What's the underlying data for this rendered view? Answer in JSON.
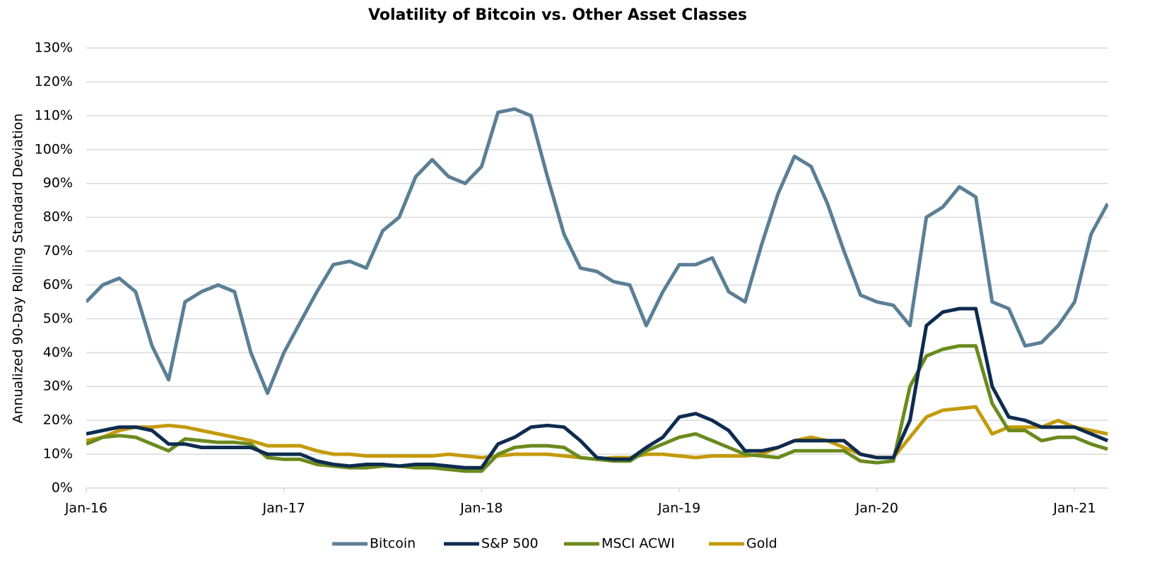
{
  "chart_data": {
    "type": "line",
    "title": "Volatility of Bitcoin vs. Other Asset Classes",
    "y_label": "Annualized 90-Day Rolling Standard Deviation",
    "x": [
      2016,
      2016.083,
      2016.167,
      2016.25,
      2016.333,
      2016.417,
      2016.5,
      2016.583,
      2016.667,
      2016.75,
      2016.833,
      2016.917,
      2017,
      2017.083,
      2017.167,
      2017.25,
      2017.333,
      2017.417,
      2017.5,
      2017.583,
      2017.667,
      2017.75,
      2017.833,
      2017.917,
      2018,
      2018.083,
      2018.167,
      2018.25,
      2018.333,
      2018.417,
      2018.5,
      2018.583,
      2018.667,
      2018.75,
      2018.833,
      2018.917,
      2019,
      2019.083,
      2019.167,
      2019.25,
      2019.333,
      2019.417,
      2019.5,
      2019.583,
      2019.667,
      2019.75,
      2019.833,
      2019.917,
      2020,
      2020.083,
      2020.167,
      2020.25,
      2020.333,
      2020.417,
      2020.5,
      2020.583,
      2020.667,
      2020.75,
      2020.833,
      2020.917,
      2021,
      2021.083,
      2021.167
    ],
    "series": [
      {
        "name": "Bitcoin",
        "color": "#5b7f95",
        "values": [
          55,
          60,
          62,
          58,
          42,
          32,
          55,
          58,
          60,
          58,
          40,
          28,
          40,
          49,
          58,
          66,
          67,
          65,
          76,
          80,
          92,
          97,
          92,
          90,
          95,
          111,
          112,
          110,
          92,
          75,
          65,
          64,
          61,
          60,
          48,
          58,
          66,
          66,
          68,
          58,
          55,
          72,
          87,
          98,
          95,
          84,
          70,
          57,
          55,
          54,
          48,
          80,
          83,
          89,
          86,
          55,
          53,
          42,
          43,
          48,
          55,
          75,
          84
        ]
      },
      {
        "name": "S&P 500",
        "color": "#0d2c4f",
        "values": [
          16,
          17,
          18,
          18,
          17,
          13,
          13,
          12,
          12,
          12,
          12,
          10,
          10,
          10,
          8,
          7,
          6.5,
          7,
          7,
          6.5,
          7,
          7,
          6.5,
          6,
          6,
          13,
          15,
          18,
          18.5,
          18,
          14,
          9,
          8.5,
          8.5,
          12,
          15,
          21,
          22,
          20,
          17,
          11,
          11,
          12,
          14,
          14,
          14,
          14,
          10,
          9,
          9,
          20,
          48,
          52,
          53,
          53,
          30,
          21,
          20,
          18,
          18,
          18,
          16,
          14
        ]
      },
      {
        "name": "MSCI ACWI",
        "color": "#6b8a1e",
        "values": [
          13,
          15,
          15.5,
          15,
          13,
          11,
          14.5,
          14,
          13.5,
          13.5,
          13,
          9,
          8.5,
          8.5,
          7,
          6.5,
          6,
          6,
          6.5,
          6.5,
          6,
          6,
          5.5,
          5,
          5,
          10,
          12,
          12.5,
          12.5,
          12,
          9,
          8.5,
          8,
          8,
          11,
          13,
          15,
          16,
          14,
          12,
          10,
          9.5,
          9,
          11,
          11,
          11,
          11,
          8,
          7.5,
          8,
          30,
          39,
          41,
          42,
          42,
          25,
          17,
          17,
          14,
          15,
          15,
          13,
          11.5
        ]
      },
      {
        "name": "Gold",
        "color": "#c49a0a",
        "values": [
          14,
          15,
          17,
          18,
          18,
          18.5,
          18,
          17,
          16,
          15,
          14,
          12.5,
          12.5,
          12.5,
          11,
          10,
          10,
          9.5,
          9.5,
          9.5,
          9.5,
          9.5,
          10,
          9.5,
          9,
          9.5,
          10,
          10,
          10,
          9.5,
          9,
          8.5,
          9,
          9,
          10,
          10,
          9.5,
          9,
          9.5,
          9.5,
          9.5,
          10,
          12,
          14,
          15,
          14,
          12,
          10,
          9,
          9,
          15,
          21,
          23,
          23.5,
          24,
          16,
          18,
          18,
          18,
          20,
          18,
          17,
          16
        ]
      }
    ],
    "xlim": [
      2016,
      2021.17
    ],
    "xticks": [
      {
        "value": 2016,
        "label": "Jan-16"
      },
      {
        "value": 2017,
        "label": "Jan-17"
      },
      {
        "value": 2018,
        "label": "Jan-18"
      },
      {
        "value": 2019,
        "label": "Jan-19"
      },
      {
        "value": 2020,
        "label": "Jan-20"
      },
      {
        "value": 2021,
        "label": "Jan-21"
      }
    ],
    "ylim": [
      0,
      130
    ],
    "yticks": [
      {
        "value": 0,
        "label": "0%"
      },
      {
        "value": 10,
        "label": "10%"
      },
      {
        "value": 20,
        "label": "20%"
      },
      {
        "value": 30,
        "label": "30%"
      },
      {
        "value": 40,
        "label": "40%"
      },
      {
        "value": 50,
        "label": "50%"
      },
      {
        "value": 60,
        "label": "60%"
      },
      {
        "value": 70,
        "label": "70%"
      },
      {
        "value": 80,
        "label": "80%"
      },
      {
        "value": 90,
        "label": "90%"
      },
      {
        "value": 100,
        "label": "100%"
      },
      {
        "value": 110,
        "label": "110%"
      },
      {
        "value": 120,
        "label": "120%"
      },
      {
        "value": 130,
        "label": "130%"
      }
    ],
    "grid": true,
    "legend": "bottom"
  }
}
